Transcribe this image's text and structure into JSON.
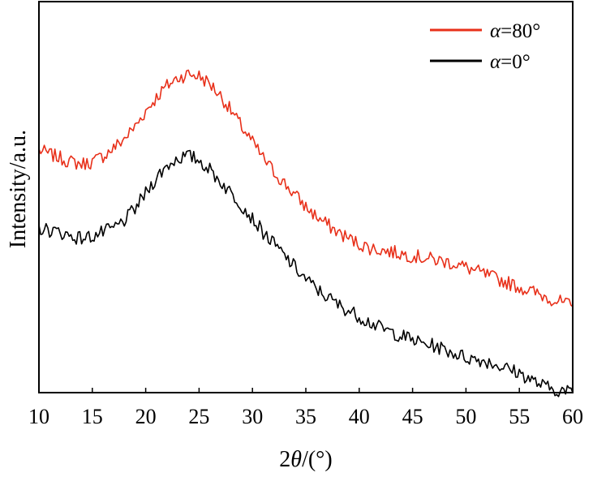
{
  "chart_data": {
    "type": "line",
    "title": "",
    "xlabel_parts": {
      "prefix": "2",
      "symbol": "θ",
      "suffix": "/(°)"
    },
    "ylabel": "Intensity/a.u.",
    "xlim": [
      10,
      60
    ],
    "xticks": [
      10,
      15,
      20,
      25,
      30,
      35,
      40,
      45,
      50,
      55,
      60
    ],
    "y_ticks_shown": false,
    "grid": false,
    "legend": {
      "position": "top-right"
    },
    "ylim": [
      0,
      100
    ],
    "series": [
      {
        "name": "α=80°",
        "symbol": "α",
        "suffix": "=80°",
        "color": "#e8301a",
        "x": [
          10,
          11,
          12,
          13,
          14,
          15,
          16,
          17,
          18,
          19,
          20,
          21,
          22,
          23,
          24,
          25,
          26,
          27,
          28,
          29,
          30,
          31,
          32,
          33,
          34,
          35,
          36,
          37,
          38,
          39,
          40,
          41,
          42,
          43,
          44,
          45,
          46,
          47,
          48,
          49,
          50,
          51,
          52,
          53,
          54,
          55,
          56,
          57,
          58,
          59,
          60
        ],
        "y": [
          62,
          61,
          60,
          59,
          58.5,
          59,
          60.5,
          62.5,
          65,
          68,
          72,
          75.5,
          78.5,
          80.5,
          81.5,
          81,
          79,
          76,
          72,
          68,
          64,
          60,
          56.5,
          53.5,
          50.5,
          47.5,
          45,
          43,
          41,
          39.5,
          38,
          37,
          36.5,
          36,
          35.5,
          35,
          34.5,
          34,
          33.5,
          33,
          32,
          31,
          30,
          29,
          28,
          27,
          26,
          25,
          24,
          23,
          22
        ]
      },
      {
        "name": "α=0°",
        "symbol": "α",
        "suffix": "=0°",
        "color": "#000000",
        "x": [
          10,
          11,
          12,
          13,
          14,
          15,
          16,
          17,
          18,
          19,
          20,
          21,
          22,
          23,
          24,
          25,
          26,
          27,
          28,
          29,
          30,
          31,
          32,
          33,
          34,
          35,
          36,
          37,
          38,
          39,
          40,
          41,
          42,
          43,
          44,
          45,
          46,
          47,
          48,
          49,
          50,
          51,
          52,
          53,
          54,
          55,
          56,
          57,
          58,
          59,
          60
        ],
        "y": [
          42,
          41.5,
          41,
          40,
          39.5,
          40,
          41,
          42,
          44,
          47,
          51,
          55,
          58,
          60,
          60.5,
          59.5,
          57,
          54,
          51,
          48,
          44.5,
          41,
          38,
          35,
          32,
          29,
          26.5,
          24.5,
          22.5,
          21,
          19.5,
          18,
          16.5,
          15.5,
          14.5,
          13.5,
          12.5,
          12,
          11,
          10,
          9,
          8.5,
          8,
          7,
          6,
          5,
          3.5,
          2,
          1,
          0.5,
          0
        ]
      }
    ]
  }
}
